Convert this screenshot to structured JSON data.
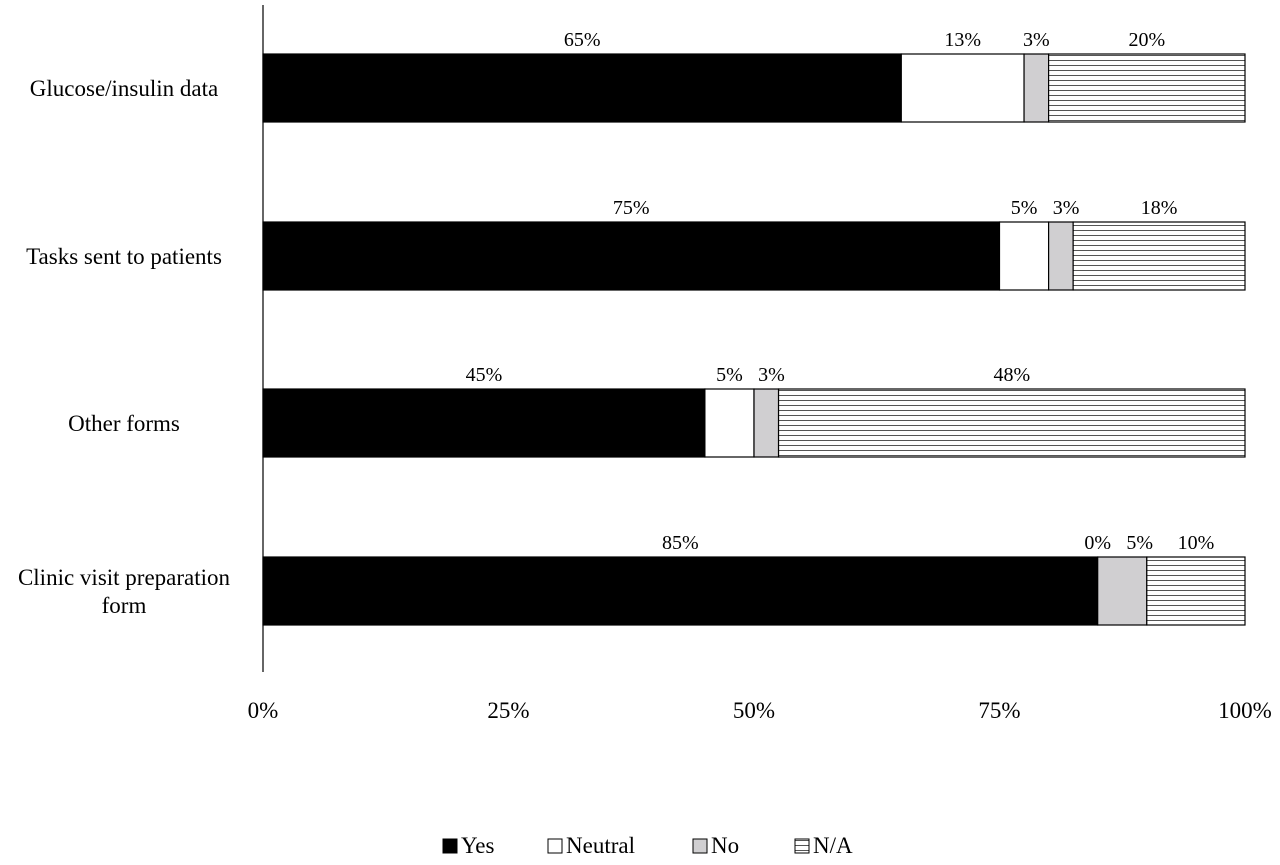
{
  "chart_data": {
    "type": "bar",
    "orientation": "horizontal",
    "stacked": true,
    "categories": [
      [
        "Glucose/insulin data"
      ],
      [
        "Tasks sent to patients"
      ],
      [
        "Other forms"
      ],
      [
        "Clinic visit preparation",
        "form"
      ]
    ],
    "series": [
      {
        "name": "Yes",
        "color": "#000000",
        "pattern": "solid",
        "values": [
          65,
          75,
          45,
          85
        ],
        "labels": [
          "65%",
          "75%",
          "45%",
          "85%"
        ]
      },
      {
        "name": "Neutral",
        "color": "#ffffff",
        "pattern": "solid",
        "values": [
          12.5,
          5,
          5,
          0
        ],
        "labels": [
          "13%",
          "5%",
          "5%",
          "0%"
        ]
      },
      {
        "name": "No",
        "color": "#d0cfd1",
        "pattern": "solid",
        "values": [
          2.5,
          2.5,
          2.5,
          5
        ],
        "labels": [
          "3%",
          "3%",
          "3%",
          "5%"
        ]
      },
      {
        "name": "N/A",
        "color": "#ffffff",
        "pattern": "horizontal-lines",
        "values": [
          20,
          17.5,
          47.5,
          10
        ],
        "labels": [
          "20%",
          "18%",
          "48%",
          "10%"
        ]
      }
    ],
    "x_ticks": [
      0,
      25,
      50,
      75,
      100
    ],
    "x_tick_labels": [
      "0%",
      "25%",
      "50%",
      "75%",
      "100%"
    ],
    "xlim": [
      0,
      100
    ],
    "title": "",
    "xlabel": "",
    "ylabel": "",
    "grid": false,
    "legend_position": "bottom"
  }
}
